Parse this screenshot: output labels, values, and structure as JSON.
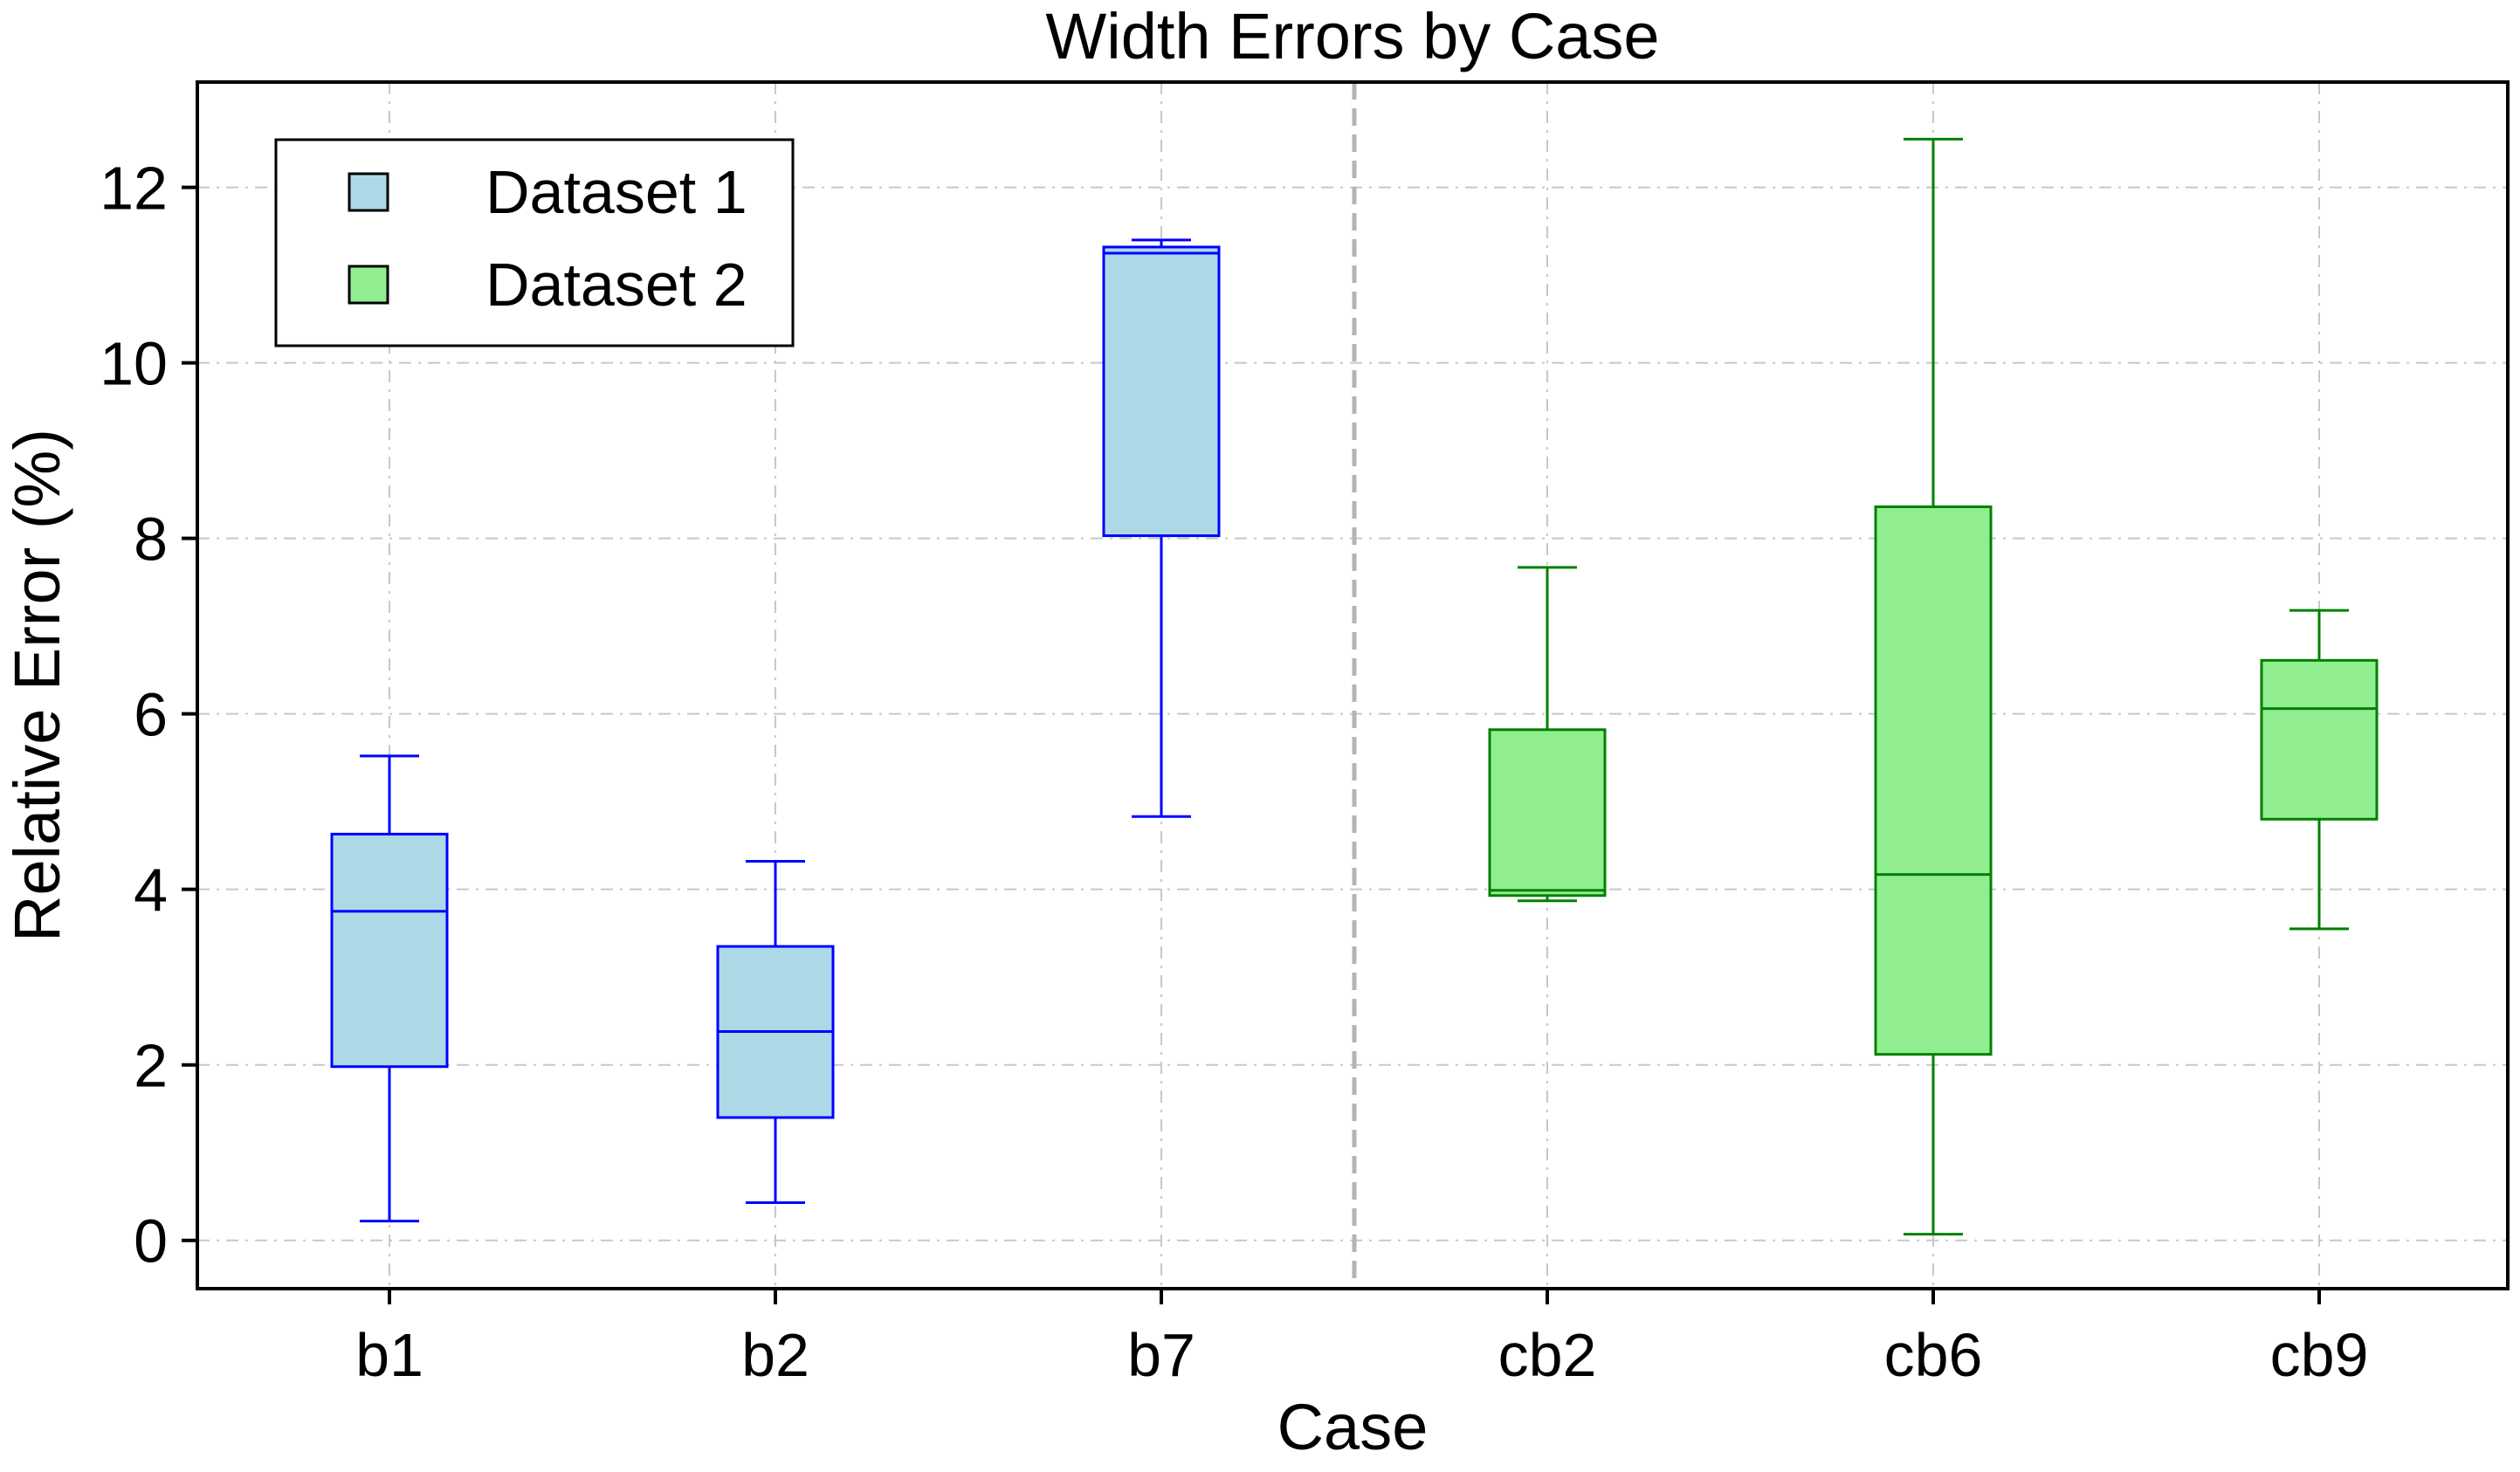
{
  "chart_data": {
    "type": "box",
    "title": "Width Errors by Case",
    "xlabel": "Case",
    "ylabel": "Relative Error (%)",
    "categories": [
      "b1",
      "b2",
      "b7",
      "cb2",
      "cb6",
      "cb9"
    ],
    "ylim": [
      -0.55,
      13.2
    ],
    "yticks": [
      0,
      2,
      4,
      6,
      8,
      10,
      12
    ],
    "grid": true,
    "legend_position": "top-left",
    "separator_after_category": "b7",
    "series": [
      {
        "name": "Dataset 1",
        "fill": "#add8e6",
        "stroke": "#0000ff",
        "boxes": [
          {
            "category": "b1",
            "whisker_low": 0.22,
            "q1": 1.98,
            "median": 3.75,
            "q3": 4.63,
            "whisker_high": 5.52
          },
          {
            "category": "b2",
            "whisker_low": 0.43,
            "q1": 1.4,
            "median": 2.38,
            "q3": 3.35,
            "whisker_high": 4.32
          },
          {
            "category": "b7",
            "whisker_low": 4.83,
            "q1": 8.03,
            "median": 11.25,
            "q3": 11.32,
            "whisker_high": 11.4
          }
        ]
      },
      {
        "name": "Dataset 2",
        "fill": "#90ee90",
        "stroke": "#008000",
        "boxes": [
          {
            "category": "cb2",
            "whisker_low": 3.87,
            "q1": 3.93,
            "median": 3.99,
            "q3": 5.82,
            "whisker_high": 7.67
          },
          {
            "category": "cb6",
            "whisker_low": 0.07,
            "q1": 2.12,
            "median": 4.17,
            "q3": 8.36,
            "whisker_high": 12.55
          },
          {
            "category": "cb9",
            "whisker_low": 3.55,
            "q1": 4.8,
            "median": 6.06,
            "q3": 6.61,
            "whisker_high": 7.18
          }
        ]
      }
    ]
  }
}
